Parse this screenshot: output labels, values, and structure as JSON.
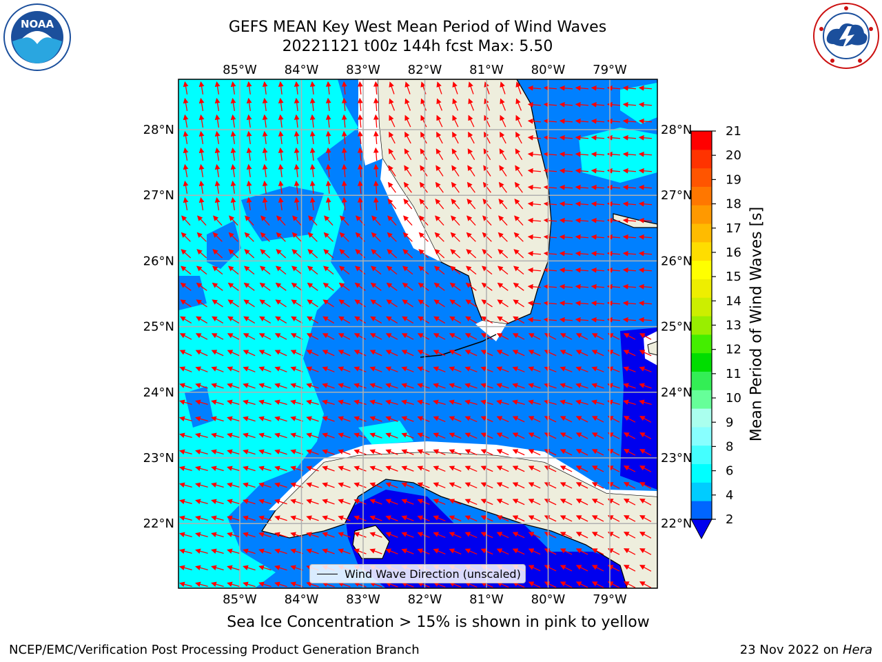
{
  "title_line1": "GEFS MEAN Key West Mean Period of Wind Waves",
  "title_line2": "20221121 t00z 144h fcst   Max: 5.50",
  "colorbar": {
    "label": "Mean Period of Wind Waves [s]",
    "ticks": [
      "2",
      "4",
      "6",
      "8",
      "9",
      "10",
      "11",
      "12",
      "13",
      "14",
      "15",
      "16",
      "17",
      "18",
      "19",
      "20",
      "21"
    ],
    "colors": [
      "#0066ff",
      "#00ccff",
      "#00ffff",
      "#44ffff",
      "#88ffff",
      "#aaffee",
      "#66ff99",
      "#33ee55",
      "#00dd00",
      "#44ee00",
      "#99ee00",
      "#ccee00",
      "#eeee00",
      "#ffff00",
      "#ffdd00",
      "#ffbb00",
      "#ff9900",
      "#ff7700",
      "#ff5500",
      "#ff3300",
      "#ff0000"
    ]
  },
  "lon_labels": [
    "85°W",
    "84°W",
    "83°W",
    "82°W",
    "81°W",
    "80°W",
    "79°W"
  ],
  "lat_labels": [
    "28°N",
    "27°N",
    "26°N",
    "25°N",
    "24°N",
    "23°N",
    "22°N"
  ],
  "legend_text": "Wind Wave Direction (unscaled)",
  "sea_ice_note": "Sea Ice Concentration > 15% is shown in pink to yellow",
  "footer_left": "NCEP/EMC/Verification Post Processing Product Generation Branch",
  "footer_date": "23 Nov 2022 on",
  "footer_host": "Hera",
  "logos": {
    "left": "noaa-logo",
    "right": "nws-logo",
    "left_text": "NOAA"
  },
  "colors": {
    "land": "#eeeedd",
    "cyan": "#00ffff",
    "blue": "#0080ff",
    "darkblue": "#0000ee",
    "arrows": "#ff0000"
  }
}
